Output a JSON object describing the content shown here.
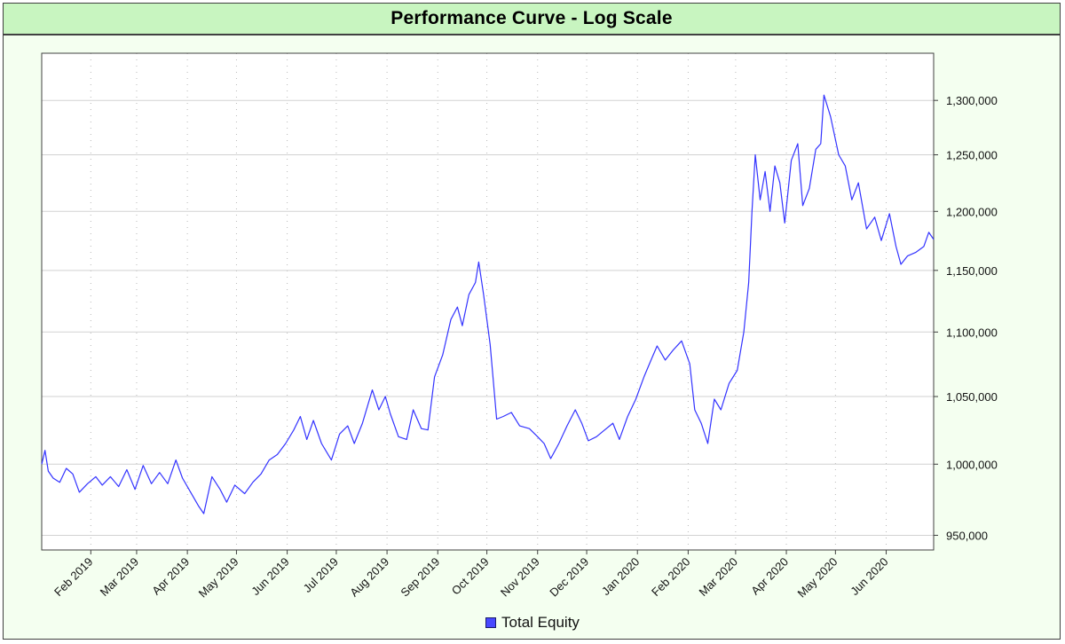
{
  "chart_data": {
    "type": "line",
    "title": "Performance Curve - Log Scale",
    "xlabel": "",
    "ylabel": "",
    "y_scale": "log",
    "ylim": [
      940000,
      1345000
    ],
    "xlim": [
      "2019-01-02",
      "2020-06-30"
    ],
    "y_ticks": [
      950000,
      1000000,
      1050000,
      1100000,
      1150000,
      1200000,
      1250000,
      1300000
    ],
    "y_tick_labels": [
      "950,000",
      "1,000,000",
      "1,050,000",
      "1,100,000",
      "1,150,000",
      "1,200,000",
      "1,250,000",
      "1,300,000"
    ],
    "x_ticks": [
      "2019-02-01",
      "2019-03-01",
      "2019-04-01",
      "2019-05-01",
      "2019-06-01",
      "2019-07-01",
      "2019-08-01",
      "2019-09-01",
      "2019-10-01",
      "2019-11-01",
      "2019-12-01",
      "2020-01-01",
      "2020-02-01",
      "2020-03-01",
      "2020-04-01",
      "2020-05-01",
      "2020-06-01"
    ],
    "x_tick_labels": [
      "Feb 2019",
      "Mar 2019",
      "Apr 2019",
      "May 2019",
      "Jun 2019",
      "Jul 2019",
      "Aug 2019",
      "Sep 2019",
      "Oct 2019",
      "Nov 2019",
      "Dec 2019",
      "Jan 2020",
      "Feb 2020",
      "Mar 2020",
      "Apr 2020",
      "May 2020",
      "Jun 2020"
    ],
    "grid": true,
    "legend_position": "bottom-center",
    "series": [
      {
        "name": "Total Equity",
        "color": "#3333ff",
        "points": [
          [
            "2019-01-02",
            1000000
          ],
          [
            "2019-01-04",
            1010000
          ],
          [
            "2019-01-06",
            995000
          ],
          [
            "2019-01-09",
            990000
          ],
          [
            "2019-01-13",
            987000
          ],
          [
            "2019-01-17",
            997000
          ],
          [
            "2019-01-21",
            993000
          ],
          [
            "2019-01-25",
            980000
          ],
          [
            "2019-01-30",
            986000
          ],
          [
            "2019-02-04",
            991000
          ],
          [
            "2019-02-08",
            985000
          ],
          [
            "2019-02-13",
            991000
          ],
          [
            "2019-02-18",
            984000
          ],
          [
            "2019-02-23",
            996000
          ],
          [
            "2019-02-28",
            982000
          ],
          [
            "2019-03-05",
            999000
          ],
          [
            "2019-03-10",
            986000
          ],
          [
            "2019-03-15",
            994000
          ],
          [
            "2019-03-20",
            986000
          ],
          [
            "2019-03-25",
            1003000
          ],
          [
            "2019-03-29",
            990000
          ],
          [
            "2019-04-03",
            980000
          ],
          [
            "2019-04-08",
            970000
          ],
          [
            "2019-04-11",
            965000
          ],
          [
            "2019-04-16",
            991000
          ],
          [
            "2019-04-21",
            982000
          ],
          [
            "2019-04-25",
            973000
          ],
          [
            "2019-04-30",
            985000
          ],
          [
            "2019-05-06",
            979000
          ],
          [
            "2019-05-11",
            987000
          ],
          [
            "2019-05-16",
            993000
          ],
          [
            "2019-05-21",
            1003000
          ],
          [
            "2019-05-26",
            1007000
          ],
          [
            "2019-05-31",
            1015000
          ],
          [
            "2019-06-05",
            1025000
          ],
          [
            "2019-06-09",
            1035000
          ],
          [
            "2019-06-13",
            1018000
          ],
          [
            "2019-06-17",
            1032000
          ],
          [
            "2019-06-22",
            1015000
          ],
          [
            "2019-06-28",
            1003000
          ],
          [
            "2019-07-03",
            1022000
          ],
          [
            "2019-07-08",
            1028000
          ],
          [
            "2019-07-12",
            1015000
          ],
          [
            "2019-07-17",
            1030000
          ],
          [
            "2019-07-23",
            1055000
          ],
          [
            "2019-07-27",
            1040000
          ],
          [
            "2019-07-31",
            1050000
          ],
          [
            "2019-08-03",
            1037000
          ],
          [
            "2019-08-08",
            1020000
          ],
          [
            "2019-08-13",
            1018000
          ],
          [
            "2019-08-17",
            1040000
          ],
          [
            "2019-08-22",
            1026000
          ],
          [
            "2019-08-26",
            1025000
          ],
          [
            "2019-08-30",
            1065000
          ],
          [
            "2019-09-04",
            1082000
          ],
          [
            "2019-09-09",
            1110000
          ],
          [
            "2019-09-13",
            1120000
          ],
          [
            "2019-09-16",
            1105000
          ],
          [
            "2019-09-20",
            1130000
          ],
          [
            "2019-09-24",
            1140000
          ],
          [
            "2019-09-26",
            1157000
          ],
          [
            "2019-09-29",
            1130000
          ],
          [
            "2019-10-03",
            1090000
          ],
          [
            "2019-10-07",
            1033000
          ],
          [
            "2019-10-11",
            1035000
          ],
          [
            "2019-10-16",
            1038000
          ],
          [
            "2019-10-21",
            1028000
          ],
          [
            "2019-10-27",
            1026000
          ],
          [
            "2019-11-01",
            1020000
          ],
          [
            "2019-11-05",
            1015000
          ],
          [
            "2019-11-09",
            1004000
          ],
          [
            "2019-11-14",
            1015000
          ],
          [
            "2019-11-19",
            1028000
          ],
          [
            "2019-11-24",
            1040000
          ],
          [
            "2019-11-28",
            1030000
          ],
          [
            "2019-12-02",
            1017000
          ],
          [
            "2019-12-07",
            1020000
          ],
          [
            "2019-12-12",
            1025000
          ],
          [
            "2019-12-17",
            1030000
          ],
          [
            "2019-12-21",
            1018000
          ],
          [
            "2019-12-26",
            1035000
          ],
          [
            "2019-12-31",
            1048000
          ],
          [
            "2020-01-05",
            1065000
          ],
          [
            "2020-01-10",
            1080000
          ],
          [
            "2020-01-13",
            1089000
          ],
          [
            "2020-01-18",
            1078000
          ],
          [
            "2020-01-23",
            1086000
          ],
          [
            "2020-01-28",
            1093000
          ],
          [
            "2020-02-02",
            1075000
          ],
          [
            "2020-02-05",
            1040000
          ],
          [
            "2020-02-09",
            1030000
          ],
          [
            "2020-02-13",
            1015000
          ],
          [
            "2020-02-17",
            1048000
          ],
          [
            "2020-02-21",
            1040000
          ],
          [
            "2020-02-26",
            1060000
          ],
          [
            "2020-03-02",
            1070000
          ],
          [
            "2020-03-06",
            1100000
          ],
          [
            "2020-03-09",
            1140000
          ],
          [
            "2020-03-11",
            1200000
          ],
          [
            "2020-03-13",
            1250000
          ],
          [
            "2020-03-16",
            1210000
          ],
          [
            "2020-03-19",
            1235000
          ],
          [
            "2020-03-22",
            1200000
          ],
          [
            "2020-03-25",
            1240000
          ],
          [
            "2020-03-28",
            1225000
          ],
          [
            "2020-03-31",
            1190000
          ],
          [
            "2020-04-04",
            1245000
          ],
          [
            "2020-04-08",
            1260000
          ],
          [
            "2020-04-11",
            1205000
          ],
          [
            "2020-04-15",
            1220000
          ],
          [
            "2020-04-19",
            1255000
          ],
          [
            "2020-04-22",
            1260000
          ],
          [
            "2020-04-24",
            1305000
          ],
          [
            "2020-04-28",
            1285000
          ],
          [
            "2020-05-03",
            1250000
          ],
          [
            "2020-05-07",
            1240000
          ],
          [
            "2020-05-11",
            1210000
          ],
          [
            "2020-05-15",
            1225000
          ],
          [
            "2020-05-20",
            1185000
          ],
          [
            "2020-05-25",
            1195000
          ],
          [
            "2020-05-29",
            1175000
          ],
          [
            "2020-06-03",
            1198000
          ],
          [
            "2020-06-07",
            1170000
          ],
          [
            "2020-06-10",
            1155000
          ],
          [
            "2020-06-14",
            1162000
          ],
          [
            "2020-06-19",
            1165000
          ],
          [
            "2020-06-24",
            1170000
          ],
          [
            "2020-06-27",
            1182000
          ],
          [
            "2020-06-30",
            1176000
          ]
        ]
      }
    ]
  }
}
